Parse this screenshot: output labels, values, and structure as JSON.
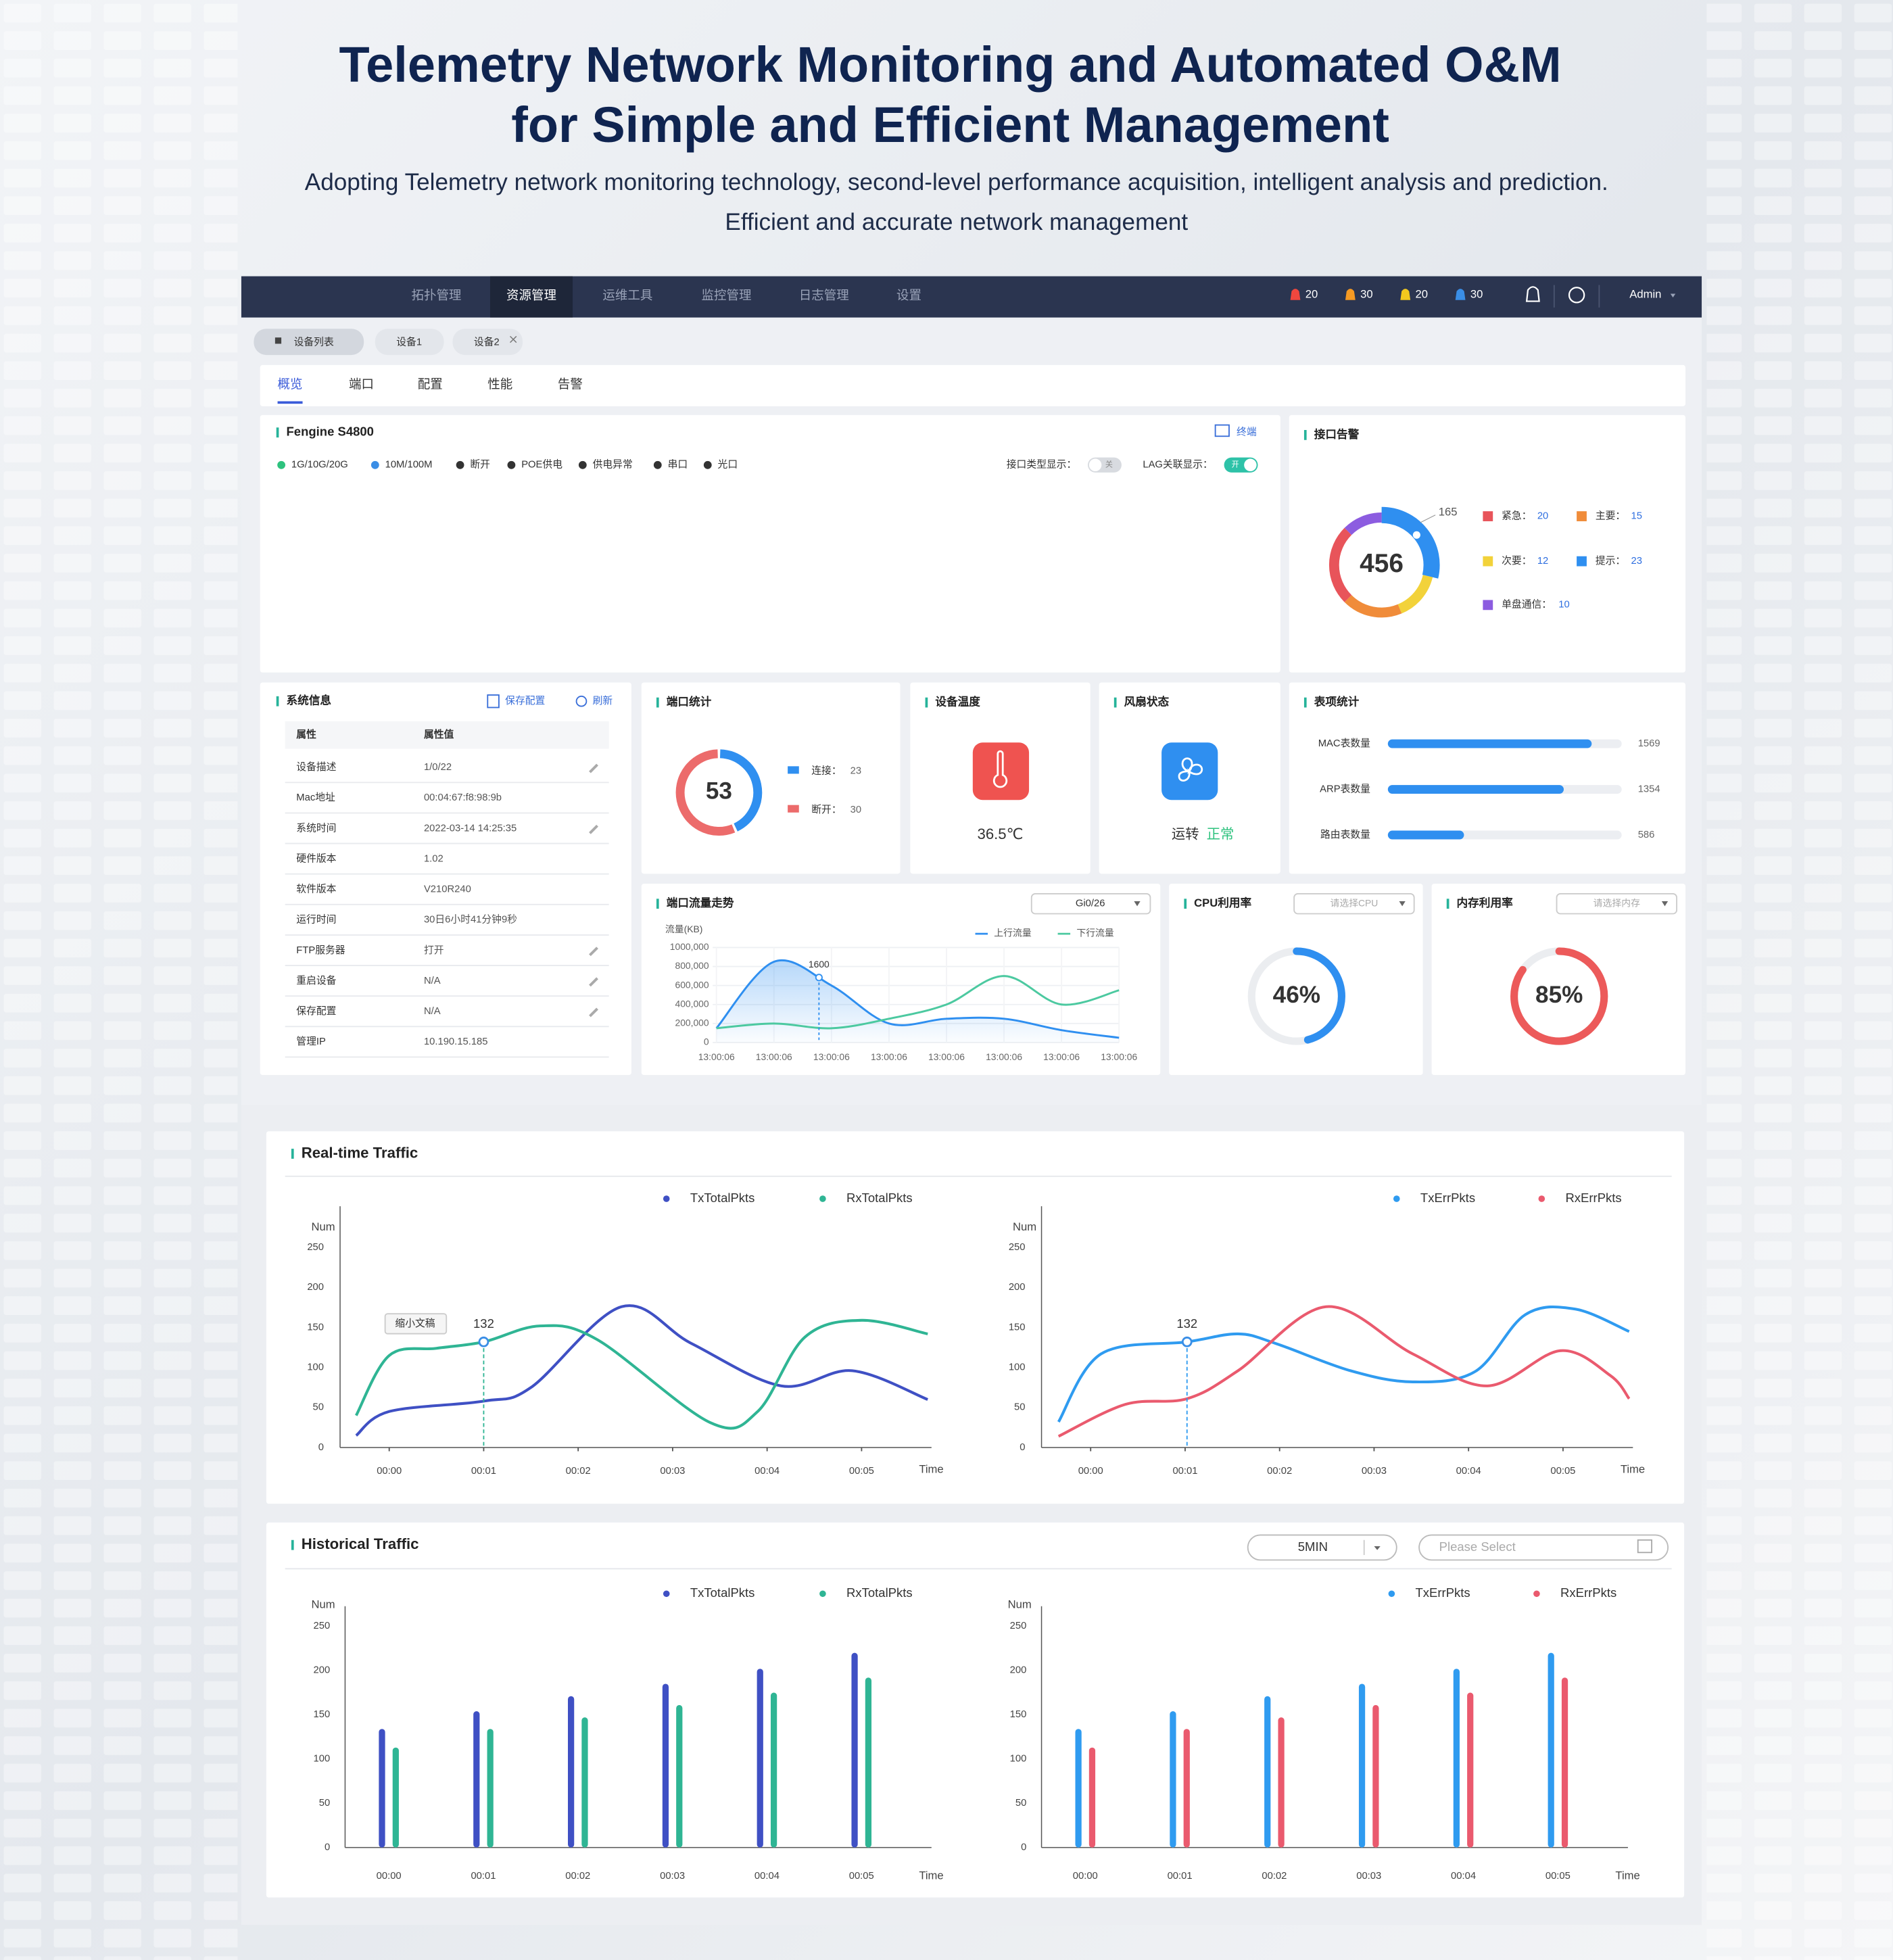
{
  "header": {
    "title": [
      "Telemetry Network Monitoring and Automated O&M",
      "for Simple and Efficient Management"
    ],
    "subtitle": [
      "Adopting Telemetry network monitoring technology, second-level performance acquisition, intelligent analysis and prediction.",
      "Efficient and accurate network management"
    ]
  },
  "nav": {
    "menu": [
      "拓扑管理",
      "资源管理",
      "运维工具",
      "监控管理",
      "日志管理",
      "设置"
    ],
    "active": 1,
    "alarms": [
      {
        "count": 20,
        "color": "#f0473e"
      },
      {
        "count": 30,
        "color": "#f59a23"
      },
      {
        "count": 20,
        "color": "#f2c81e"
      },
      {
        "count": 30,
        "color": "#3a8ee6"
      }
    ],
    "user": "Admin"
  },
  "tabs": {
    "items": [
      "设备列表",
      "设备1",
      "设备2"
    ],
    "active": 0
  },
  "subtabs": {
    "items": [
      "概览",
      "端口",
      "配置",
      "性能",
      "告警"
    ],
    "active": 0
  },
  "device": {
    "name": "Fengine S4800",
    "terminal": "终端",
    "legend": [
      "1G/10G/20G",
      "10M/100M",
      "断开",
      "POE供电",
      "供电异常",
      "串口",
      "光口"
    ],
    "toggles": [
      {
        "label": "接口类型显示：",
        "state": "关",
        "on": false
      },
      {
        "label": "LAG关联显示：",
        "state": "开",
        "on": true
      }
    ]
  },
  "interface_alarm": {
    "title": "接口告警",
    "total": 456,
    "highlight": 165,
    "items": [
      {
        "label": "紧急：",
        "value": 20,
        "color": "#e8545a"
      },
      {
        "label": "主要：",
        "value": 15,
        "color": "#f08c3a"
      },
      {
        "label": "次要：",
        "value": 12,
        "color": "#f2d23a"
      },
      {
        "label": "提示：",
        "value": 23,
        "color": "#2f8ff0"
      },
      {
        "label": "单盘通信：",
        "value": 10,
        "color": "#8c5ce0"
      }
    ]
  },
  "system_info": {
    "title": "系统信息",
    "save": "保存配置",
    "refresh": "刷新",
    "columns": [
      "属性",
      "属性值"
    ],
    "rows": [
      [
        "设备描述",
        "1/0/22"
      ],
      [
        "Mac地址",
        "00:04:67:f8:98:9b"
      ],
      [
        "系统时间",
        "2022-03-14  14:25:35"
      ],
      [
        "硬件版本",
        "1.02"
      ],
      [
        "软件版本",
        "V210R240"
      ],
      [
        "运行时间",
        "30日6小时41分钟9秒"
      ],
      [
        "FTP服务器",
        "打开"
      ],
      [
        "重启设备",
        "N/A"
      ],
      [
        "保存配置",
        "N/A"
      ],
      [
        "管理IP",
        "10.190.15.185"
      ]
    ],
    "editable": [
      true,
      false,
      true,
      false,
      false,
      false,
      true,
      true,
      true,
      false
    ]
  },
  "port_stats": {
    "title": "端口统计",
    "total": 53,
    "items": [
      {
        "label": "连接：",
        "value": 23,
        "color": "#2f8ff0"
      },
      {
        "label": "断开：",
        "value": 30,
        "color": "#ec6b6b"
      }
    ]
  },
  "temperature": {
    "title": "设备温度",
    "value": "36.5℃"
  },
  "fan": {
    "title": "风扇状态",
    "label": "运转",
    "status": "正常"
  },
  "table_stats": {
    "title": "表项统计",
    "xlim": [
      0,
      1800
    ],
    "items": [
      {
        "label": "MAC表数量",
        "value": 1569
      },
      {
        "label": "ARP表数量",
        "value": 1354
      },
      {
        "label": "路由表数量",
        "value": 586
      }
    ]
  },
  "port_traffic": {
    "type": "line",
    "title": "端口流量走势",
    "select": "Gi0/26",
    "y_title": "流量(KB)",
    "annotation": "1600",
    "categories": [
      "13:00:06",
      "13:00:06",
      "13:00:06",
      "13:00:06",
      "13:00:06",
      "13:00:06",
      "13:00:06",
      "13:00:06"
    ],
    "ylim": [
      0,
      1000000
    ],
    "yticks": [
      {
        "value": 0,
        "label": "0"
      },
      {
        "value": 200000,
        "label": "200,000"
      },
      {
        "value": 400000,
        "label": "400,000"
      },
      {
        "value": 600000,
        "label": "600,000"
      },
      {
        "value": 800000,
        "label": "800,000"
      },
      {
        "value": 1000000,
        "label": "1000,000"
      }
    ],
    "series": [
      {
        "name": "上行流量",
        "color": "#2f8ff0",
        "values": [
          150000,
          850000,
          600000,
          200000,
          250000,
          250000,
          130000,
          50000
        ]
      },
      {
        "name": "下行流量",
        "color": "#4cc9a0",
        "values": [
          150000,
          200000,
          150000,
          250000,
          400000,
          700000,
          400000,
          550000
        ]
      }
    ]
  },
  "cpu": {
    "title": "CPU利用率",
    "placeholder": "请选择CPU",
    "value": 46,
    "value_label": "46%",
    "color": "#2f8ff0"
  },
  "memory": {
    "title": "内存利用率",
    "placeholder": "请选择内存",
    "value": 85,
    "value_label": "85%",
    "color": "#ec5a5a"
  },
  "realtime": {
    "title": "Real-time Traffic",
    "charts": [
      {
        "type": "line",
        "y_title": "Num",
        "x_title": "Time",
        "annotation": "132",
        "tooltip": "缩小文稿",
        "xlim": [
          -0.52,
          5.74
        ],
        "ylim": [
          0,
          250
        ],
        "yticks": [
          0,
          50,
          100,
          150,
          200,
          250
        ],
        "xticks": [
          {
            "value": 0,
            "label": "00:00"
          },
          {
            "value": 1,
            "label": "00:01"
          },
          {
            "value": 2,
            "label": "00:02"
          },
          {
            "value": 3,
            "label": "00:03"
          },
          {
            "value": 4,
            "label": "00:04"
          },
          {
            "value": 5,
            "label": "00:05"
          }
        ],
        "series": [
          {
            "name": "TxTotalPkts",
            "color": "#3f50c4",
            "x": [
              -0.35,
              0,
              1,
              1.5,
              2.46,
              3.2,
              4.15,
              4.9,
              5.7
            ],
            "values": [
              15,
              45,
              58,
              75,
              176,
              130,
              77,
              96,
              60
            ]
          },
          {
            "name": "RxTotalPkts",
            "color": "#2fb594",
            "x": [
              -0.35,
              0,
              0.5,
              1,
              1.6,
              2.2,
              3.4,
              3.9,
              4.4,
              5,
              5.7
            ],
            "values": [
              40,
              115,
              124,
              132,
              152,
              135,
              31,
              45,
              138,
              159,
              142
            ]
          }
        ]
      },
      {
        "type": "line",
        "y_title": "Num",
        "x_title": "Time",
        "annotation": "132",
        "xlim": [
          -0.52,
          5.74
        ],
        "ylim": [
          0,
          250
        ],
        "yticks": [
          0,
          50,
          100,
          150,
          200,
          250
        ],
        "xticks": [
          {
            "value": 0,
            "label": "00:00"
          },
          {
            "value": 1,
            "label": "00:01"
          },
          {
            "value": 2,
            "label": "00:02"
          },
          {
            "value": 3,
            "label": "00:03"
          },
          {
            "value": 4,
            "label": "00:04"
          },
          {
            "value": 5,
            "label": "00:05"
          }
        ],
        "series": [
          {
            "name": "TxErrPkts",
            "color": "#2f9bf0",
            "x": [
              -0.34,
              0.11,
              1.02,
              1.56,
              1.96,
              2.75,
              3.41,
              4.07,
              4.6,
              5.13,
              5.7
            ],
            "values": [
              32,
              117,
              132,
              142,
              130,
              96,
              82,
              95,
              166,
              173,
              145
            ]
          },
          {
            "name": "RxErrPkts",
            "color": "#ea5a6e",
            "x": [
              -0.34,
              0.37,
              1.02,
              1.56,
              2.49,
              3.41,
              4.2,
              4.97,
              5.5,
              5.7
            ],
            "values": [
              14,
              54,
              61,
              96,
              176,
              117,
              77,
              121,
              90,
              61
            ]
          }
        ]
      }
    ]
  },
  "historical": {
    "title": "Historical Traffic",
    "interval": "5MIN",
    "placeholder": "Please Select",
    "charts": [
      {
        "type": "bar",
        "y_title": "Num",
        "x_title": "Time",
        "categories": [
          "00:00",
          "00:01",
          "00:02",
          "00:03",
          "00:04",
          "00:05"
        ],
        "ylim": [
          0,
          250
        ],
        "yticks": [
          0,
          50,
          100,
          150,
          200,
          250
        ],
        "series": [
          {
            "name": "TxTotalPkts",
            "color": "#3f50c4",
            "values": [
              134,
              154,
              171,
              185,
              202,
              220
            ]
          },
          {
            "name": "RxTotalPkts",
            "color": "#2fb594",
            "values": [
              113,
              134,
              147,
              161,
              175,
              192
            ]
          }
        ]
      },
      {
        "type": "bar",
        "y_title": "Num",
        "x_title": "Time",
        "categories": [
          "00:00",
          "00:01",
          "00:02",
          "00:03",
          "00:04",
          "00:05"
        ],
        "ylim": [
          0,
          250
        ],
        "yticks": [
          0,
          50,
          100,
          150,
          200,
          250
        ],
        "series": [
          {
            "name": "TxErrPkts",
            "color": "#2f9bf0",
            "values": [
              134,
              154,
              171,
              185,
              202,
              220
            ]
          },
          {
            "name": "RxErrPkts",
            "color": "#ea5a6e",
            "values": [
              113,
              134,
              147,
              161,
              175,
              192
            ]
          }
        ]
      }
    ]
  }
}
